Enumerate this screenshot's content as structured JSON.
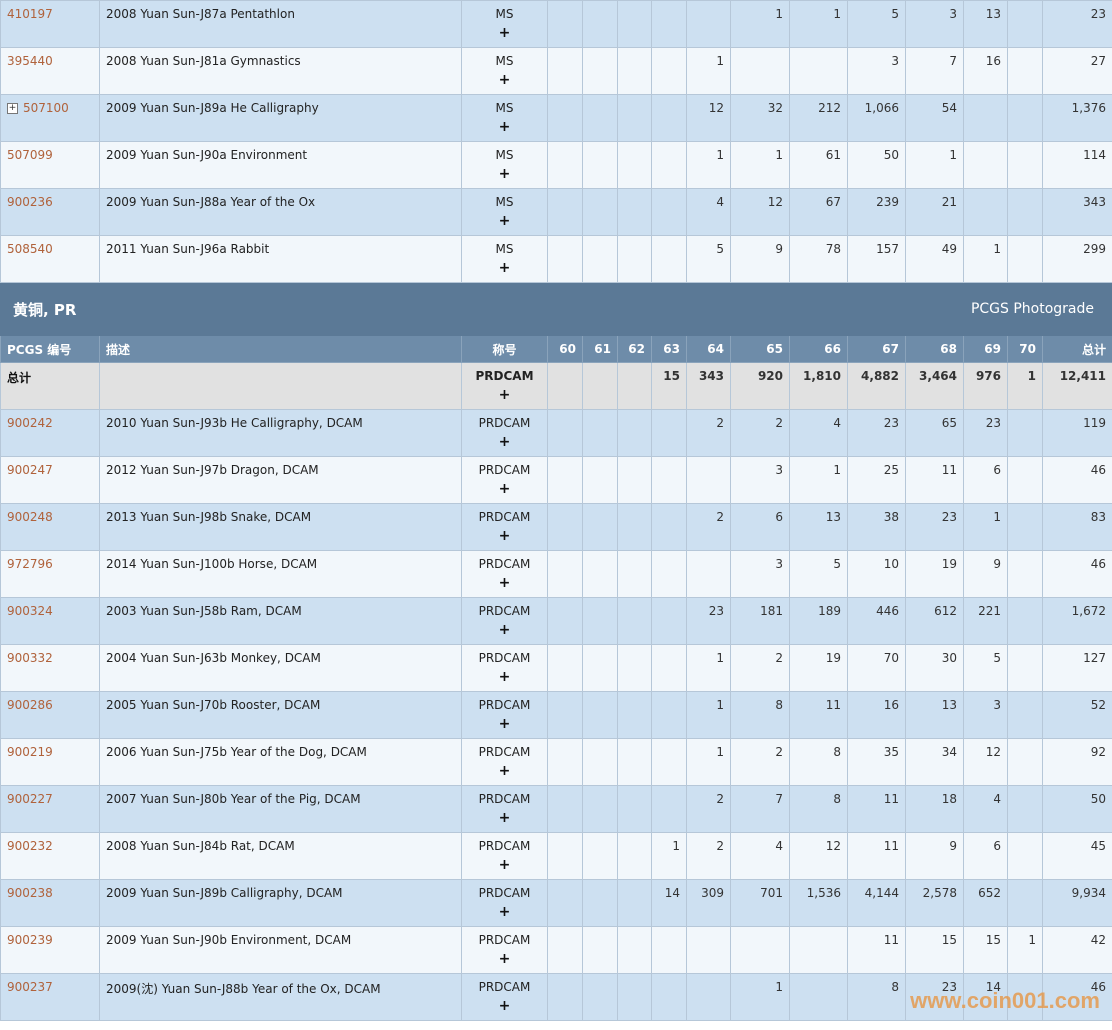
{
  "upper_rows": [
    {
      "code": "410197",
      "expand": false,
      "desc": "2008 Yuan Sun-J87a Pentathlon",
      "desig": "MS",
      "plus": "+",
      "v": [
        "",
        "",
        "",
        "",
        "",
        "1",
        "1",
        "5",
        "3",
        "13",
        "",
        "23"
      ]
    },
    {
      "code": "395440",
      "expand": false,
      "desc": "2008 Yuan Sun-J81a Gymnastics",
      "desig": "MS",
      "plus": "+",
      "v": [
        "",
        "",
        "",
        "",
        "1",
        "",
        "",
        "3",
        "7",
        "16",
        "",
        "27"
      ]
    },
    {
      "code": "507100",
      "expand": true,
      "desc": "2009 Yuan Sun-J89a He Calligraphy",
      "desig": "MS",
      "plus": "+",
      "v": [
        "",
        "",
        "",
        "",
        "12",
        "32",
        "212",
        "1,066",
        "54",
        "",
        "",
        "1,376"
      ]
    },
    {
      "code": "507099",
      "expand": false,
      "desc": "2009 Yuan Sun-J90a Environment",
      "desig": "MS",
      "plus": "+",
      "v": [
        "",
        "",
        "",
        "",
        "1",
        "1",
        "61",
        "50",
        "1",
        "",
        "",
        "114"
      ]
    },
    {
      "code": "900236",
      "expand": false,
      "desc": "2009 Yuan Sun-J88a Year of the Ox",
      "desig": "MS",
      "plus": "+",
      "v": [
        "",
        "",
        "",
        "",
        "4",
        "12",
        "67",
        "239",
        "21",
        "",
        "",
        "343"
      ]
    },
    {
      "code": "508540",
      "expand": false,
      "desc": "2011 Yuan Sun-J96a Rabbit",
      "desig": "MS",
      "plus": "+",
      "v": [
        "",
        "",
        "",
        "",
        "5",
        "9",
        "78",
        "157",
        "49",
        "1",
        "",
        "299"
      ]
    }
  ],
  "section": {
    "title": "黄铜, PR",
    "link": "PCGS Photograde"
  },
  "header": {
    "code": "PCGS 编号",
    "desc": "描述",
    "desig": "称号",
    "grades": [
      "60",
      "61",
      "62",
      "63",
      "64",
      "65",
      "66",
      "67",
      "68",
      "69",
      "70",
      "总计"
    ]
  },
  "total": {
    "label": "总计",
    "desig": "PRDCAM",
    "plus": "+",
    "v": [
      "",
      "",
      "",
      "15",
      "343",
      "920",
      "1,810",
      "4,882",
      "3,464",
      "976",
      "1",
      "12,411"
    ]
  },
  "lower_rows": [
    {
      "code": "900242",
      "desc": "2010 Yuan Sun-J93b He Calligraphy, DCAM",
      "desig": "PRDCAM",
      "plus": "+",
      "v": [
        "",
        "",
        "",
        "",
        "2",
        "2",
        "4",
        "23",
        "65",
        "23",
        "",
        "119"
      ]
    },
    {
      "code": "900247",
      "desc": "2012 Yuan Sun-J97b Dragon, DCAM",
      "desig": "PRDCAM",
      "plus": "+",
      "v": [
        "",
        "",
        "",
        "",
        "",
        "3",
        "1",
        "25",
        "11",
        "6",
        "",
        "46"
      ]
    },
    {
      "code": "900248",
      "desc": "2013 Yuan Sun-J98b Snake, DCAM",
      "desig": "PRDCAM",
      "plus": "+",
      "v": [
        "",
        "",
        "",
        "",
        "2",
        "6",
        "13",
        "38",
        "23",
        "1",
        "",
        "83"
      ]
    },
    {
      "code": "972796",
      "desc": "2014 Yuan Sun-J100b Horse, DCAM",
      "desig": "PRDCAM",
      "plus": "+",
      "v": [
        "",
        "",
        "",
        "",
        "",
        "3",
        "5",
        "10",
        "19",
        "9",
        "",
        "46"
      ]
    },
    {
      "code": "900324",
      "desc": "2003 Yuan Sun-J58b Ram, DCAM",
      "desig": "PRDCAM",
      "plus": "+",
      "v": [
        "",
        "",
        "",
        "",
        "23",
        "181",
        "189",
        "446",
        "612",
        "221",
        "",
        "1,672"
      ]
    },
    {
      "code": "900332",
      "desc": "2004 Yuan Sun-J63b Monkey, DCAM",
      "desig": "PRDCAM",
      "plus": "+",
      "v": [
        "",
        "",
        "",
        "",
        "1",
        "2",
        "19",
        "70",
        "30",
        "5",
        "",
        "127"
      ]
    },
    {
      "code": "900286",
      "desc": "2005 Yuan Sun-J70b Rooster, DCAM",
      "desig": "PRDCAM",
      "plus": "+",
      "v": [
        "",
        "",
        "",
        "",
        "1",
        "8",
        "11",
        "16",
        "13",
        "3",
        "",
        "52"
      ]
    },
    {
      "code": "900219",
      "desc": "2006 Yuan Sun-J75b Year of the Dog, DCAM",
      "desig": "PRDCAM",
      "plus": "+",
      "v": [
        "",
        "",
        "",
        "",
        "1",
        "2",
        "8",
        "35",
        "34",
        "12",
        "",
        "92"
      ]
    },
    {
      "code": "900227",
      "desc": "2007 Yuan Sun-J80b Year of the Pig, DCAM",
      "desig": "PRDCAM",
      "plus": "+",
      "v": [
        "",
        "",
        "",
        "",
        "2",
        "7",
        "8",
        "11",
        "18",
        "4",
        "",
        "50"
      ]
    },
    {
      "code": "900232",
      "desc": "2008 Yuan Sun-J84b Rat, DCAM",
      "desig": "PRDCAM",
      "plus": "+",
      "v": [
        "",
        "",
        "",
        "1",
        "2",
        "4",
        "12",
        "11",
        "9",
        "6",
        "",
        "45"
      ]
    },
    {
      "code": "900238",
      "desc": "2009 Yuan Sun-J89b Calligraphy, DCAM",
      "desig": "PRDCAM",
      "plus": "+",
      "v": [
        "",
        "",
        "",
        "14",
        "309",
        "701",
        "1,536",
        "4,144",
        "2,578",
        "652",
        "",
        "9,934"
      ]
    },
    {
      "code": "900239",
      "desc": "2009 Yuan Sun-J90b Environment, DCAM",
      "desig": "PRDCAM",
      "plus": "+",
      "v": [
        "",
        "",
        "",
        "",
        "",
        "",
        "",
        "11",
        "15",
        "15",
        "1",
        "42"
      ]
    },
    {
      "code": "900237",
      "desc": "2009(沈) Yuan Sun-J88b Year of the Ox, DCAM",
      "desig": "PRDCAM",
      "plus": "+",
      "v": [
        "",
        "",
        "",
        "",
        "",
        "1",
        "",
        "8",
        "23",
        "14",
        "",
        "46"
      ]
    }
  ],
  "watermark": "www.coin001.com"
}
